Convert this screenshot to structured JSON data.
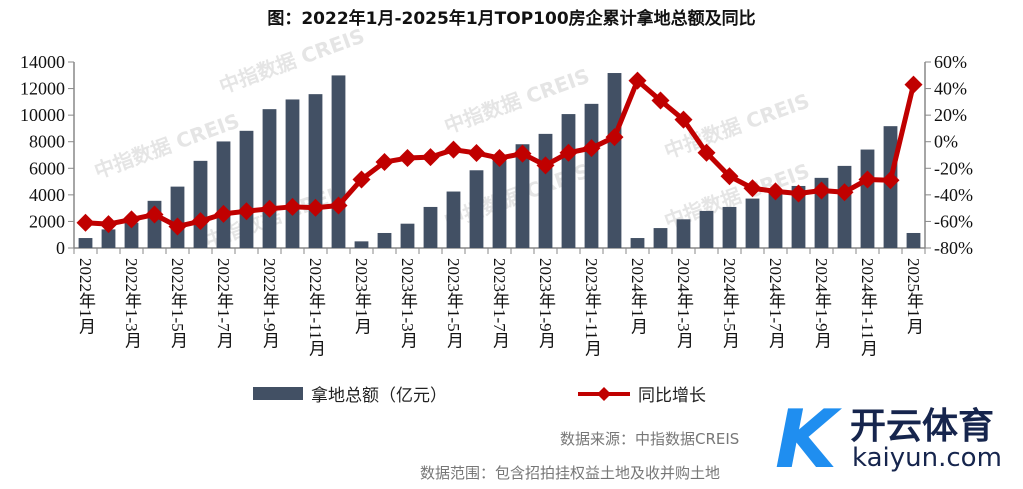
{
  "title": "图：2022年1月-2025年1月TOP100房企累计拿地总额及同比",
  "watermark": "中指数据 CREIS",
  "chart_data": {
    "type": "bar+line",
    "title": "图：2022年1月-2025年1月TOP100房企累计拿地总额及同比",
    "period": "monthly cumulative, 2022-01 to 2025-01 (37 periods)",
    "x_tick_labels": [
      "2022年1月",
      "2022年1-3月",
      "2022年1-5月",
      "2022年1-7月",
      "2022年1-9月",
      "2022年1-11月",
      "2023年1月",
      "2023年1-3月",
      "2023年1-5月",
      "2023年1-7月",
      "2023年1-9月",
      "2023年1-11月",
      "2024年1月",
      "2024年1-3月",
      "2024年1-5月",
      "2024年1-7月",
      "2024年1-9月",
      "2024年1-11月",
      "2025年1月"
    ],
    "left_axis": {
      "ylim": [
        0,
        14000
      ],
      "ticks": [
        "0",
        "2000",
        "4000",
        "6000",
        "8000",
        "10000",
        "12000",
        "14000"
      ]
    },
    "right_axis": {
      "ylim": [
        -80,
        60
      ],
      "ticks": [
        "-80%",
        "-60%",
        "-40%",
        "-20%",
        "0%",
        "20%",
        "40%",
        "60%"
      ]
    },
    "series": [
      {
        "name": "拿地总额（亿元）",
        "type": "bar",
        "color": "#425064",
        "values": [
          750,
          1400,
          1900,
          3550,
          4620,
          6560,
          8020,
          8820,
          10450,
          11180,
          11580,
          12990,
          500,
          1130,
          1830,
          3090,
          4250,
          5850,
          6600,
          7810,
          8590,
          10080,
          10850,
          13170,
          750,
          1500,
          2160,
          2790,
          3090,
          3720,
          4070,
          4670,
          5280,
          6180,
          7410,
          9170,
          1130
        ]
      },
      {
        "name": "同比增长",
        "type": "line",
        "color": "#c00000",
        "unit": "%",
        "values": [
          -61,
          -62,
          -58.5,
          -54.8,
          -63.8,
          -59.8,
          -54.3,
          -52.3,
          -50.5,
          -49,
          -49.7,
          -48,
          -28.4,
          -15.3,
          -12.3,
          -11.6,
          -6,
          -8.5,
          -12.3,
          -9,
          -17.8,
          -8.3,
          -4.8,
          3.5,
          46,
          31,
          16.6,
          -8.3,
          -26,
          -35,
          -37.4,
          -39,
          -36.7,
          -38,
          -28.4,
          -29,
          43
        ]
      }
    ],
    "legend_position": "bottom"
  },
  "notes": {
    "source": "数据来源：中指数据CREIS",
    "scope": "数据范围：包含招拍挂权益土地及收并购土地"
  },
  "logo": {
    "mark": "K",
    "cn": "开云体育",
    "en": "kaiyun.com"
  }
}
